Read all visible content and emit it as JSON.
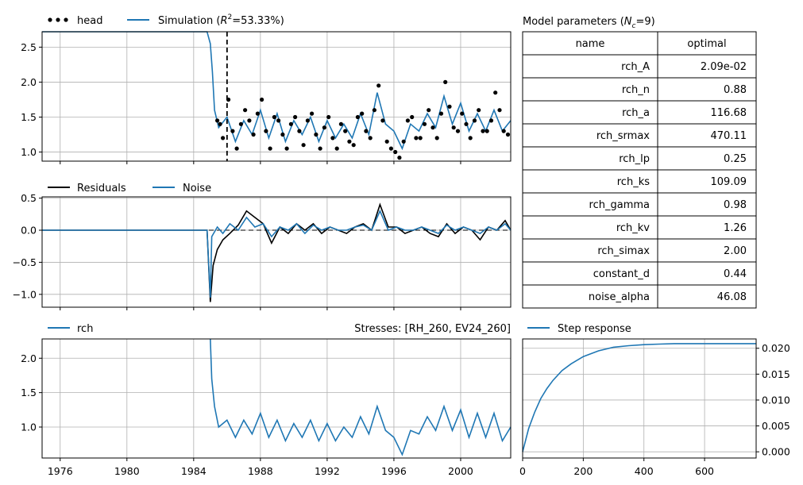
{
  "colors": {
    "simulation": "#1f77b4",
    "head": "#000000",
    "residuals": "#000000",
    "noise": "#1f77b4",
    "grid": "#b0b0b0"
  },
  "time_axis": {
    "xlim": [
      "1974-12-01",
      "2003-01-01"
    ],
    "ticks": [
      "1976",
      "1980",
      "1984",
      "1988",
      "1992",
      "1996",
      "2000"
    ]
  },
  "chart_data": [
    {
      "type": "line",
      "panel": "fit",
      "legend": {
        "head": "head",
        "simulation_prefix": "Simulation (",
        "simulation_r2_symbol": "R",
        "simulation_r2_sup": "2",
        "simulation_suffix": "=53.33%)"
      },
      "legend_placement": "top-left, outside",
      "ylim": [
        0.87,
        2.72
      ],
      "yticks": [
        "1.0",
        "1.5",
        "2.0",
        "2.5"
      ],
      "grid": true,
      "vline": {
        "x": "1986-01-01",
        "style": "dashed"
      },
      "series": [
        {
          "name": "Simulation",
          "kind": "line",
          "x": [
            "1974-12-01",
            "1984-10-20",
            "1985-01-01",
            "1985-02-15",
            "1985-04-01",
            "1985-07-01",
            "1986-01-01",
            "1986-07-01",
            "1987-01-01",
            "1987-07-01",
            "1988-01-01",
            "1988-07-01",
            "1989-01-01",
            "1989-07-01",
            "1990-01-01",
            "1990-07-01",
            "1991-01-01",
            "1991-07-01",
            "1992-01-01",
            "1992-07-01",
            "1993-01-01",
            "1993-07-01",
            "1994-01-01",
            "1994-07-01",
            "1995-01-01",
            "1995-07-01",
            "1996-01-01",
            "1996-07-01",
            "1997-01-01",
            "1997-07-01",
            "1998-01-01",
            "1998-07-01",
            "1999-01-01",
            "1999-07-01",
            "2000-01-01",
            "2000-07-01",
            "2001-01-01",
            "2001-07-01",
            "2002-01-01",
            "2002-07-01",
            "2003-01-01"
          ],
          "y": [
            2.72,
            2.72,
            2.55,
            2.15,
            1.6,
            1.35,
            1.5,
            1.15,
            1.45,
            1.25,
            1.6,
            1.2,
            1.55,
            1.15,
            1.45,
            1.25,
            1.5,
            1.15,
            1.45,
            1.2,
            1.4,
            1.2,
            1.55,
            1.25,
            1.85,
            1.4,
            1.3,
            1.05,
            1.4,
            1.3,
            1.55,
            1.35,
            1.8,
            1.4,
            1.7,
            1.3,
            1.55,
            1.3,
            1.6,
            1.3,
            1.45
          ]
        },
        {
          "name": "head",
          "kind": "points",
          "x": [
            "1985-06-01",
            "1985-08-01",
            "1985-10-01",
            "1986-02-01",
            "1986-05-01",
            "1986-08-01",
            "1986-11-01",
            "1987-02-01",
            "1987-05-01",
            "1987-08-01",
            "1987-11-01",
            "1988-02-01",
            "1988-05-01",
            "1988-08-01",
            "1988-11-01",
            "1989-02-01",
            "1989-05-01",
            "1989-08-01",
            "1989-11-01",
            "1990-02-01",
            "1990-05-01",
            "1990-08-01",
            "1990-11-01",
            "1991-02-01",
            "1991-05-01",
            "1991-08-01",
            "1991-11-01",
            "1992-02-01",
            "1992-05-01",
            "1992-08-01",
            "1992-11-01",
            "1993-02-01",
            "1993-05-01",
            "1993-08-01",
            "1993-11-01",
            "1994-02-01",
            "1994-05-01",
            "1994-08-01",
            "1994-11-01",
            "1995-02-01",
            "1995-05-01",
            "1995-08-01",
            "1995-11-01",
            "1996-02-01",
            "1996-05-01",
            "1996-08-01",
            "1996-11-01",
            "1997-02-01",
            "1997-05-01",
            "1997-08-01",
            "1997-11-01",
            "1998-02-01",
            "1998-05-01",
            "1998-08-01",
            "1998-11-01",
            "1999-02-01",
            "1999-05-01",
            "1999-08-01",
            "1999-11-01",
            "2000-02-01",
            "2000-05-01",
            "2000-08-01",
            "2000-11-01",
            "2001-02-01",
            "2001-05-01",
            "2001-08-01",
            "2001-11-01",
            "2002-02-01",
            "2002-05-01",
            "2002-08-01",
            "2002-11-01"
          ],
          "y": [
            1.45,
            1.4,
            1.2,
            1.75,
            1.3,
            1.05,
            1.4,
            1.6,
            1.45,
            1.25,
            1.55,
            1.75,
            1.3,
            1.05,
            1.5,
            1.45,
            1.25,
            1.05,
            1.4,
            1.5,
            1.3,
            1.1,
            1.45,
            1.55,
            1.25,
            1.05,
            1.35,
            1.5,
            1.2,
            1.05,
            1.4,
            1.3,
            1.15,
            1.1,
            1.5,
            1.55,
            1.3,
            1.2,
            1.6,
            1.95,
            1.45,
            1.15,
            1.05,
            1.0,
            0.92,
            1.15,
            1.45,
            1.5,
            1.2,
            1.2,
            1.4,
            1.6,
            1.35,
            1.2,
            1.55,
            2.0,
            1.65,
            1.35,
            1.3,
            1.55,
            1.4,
            1.2,
            1.45,
            1.6,
            1.3,
            1.3,
            1.45,
            1.85,
            1.6,
            1.3,
            1.25
          ]
        }
      ]
    },
    {
      "type": "line",
      "panel": "residuals",
      "legend": {
        "residuals": "Residuals",
        "noise": "Noise"
      },
      "legend_placement": "top-left, outside",
      "ylim": [
        -1.2,
        0.52
      ],
      "yticks": [
        "−1.0",
        "−0.5",
        "0.0",
        "0.5"
      ],
      "grid": true,
      "hline": {
        "y": 0.0,
        "style": "dashed"
      },
      "series": [
        {
          "name": "Residuals",
          "kind": "line",
          "x": [
            "1974-12-01",
            "1984-10-20",
            "1985-01-01",
            "1985-03-01",
            "1985-06-01",
            "1985-10-01",
            "1986-03-01",
            "1986-09-01",
            "1987-03-01",
            "1987-09-01",
            "1988-03-01",
            "1988-09-01",
            "1989-03-01",
            "1989-09-01",
            "1990-03-01",
            "1990-09-01",
            "1991-03-01",
            "1991-09-01",
            "1992-03-01",
            "1992-09-01",
            "1993-03-01",
            "1993-09-01",
            "1994-03-01",
            "1994-09-01",
            "1995-03-01",
            "1995-09-01",
            "1996-03-01",
            "1996-09-01",
            "1997-03-01",
            "1997-09-01",
            "1998-03-01",
            "1998-09-01",
            "1999-03-01",
            "1999-09-01",
            "2000-03-01",
            "2000-09-01",
            "2001-03-01",
            "2001-09-01",
            "2002-03-01",
            "2002-09-01",
            "2003-01-01"
          ],
          "y": [
            0.0,
            0.0,
            -1.12,
            -0.55,
            -0.3,
            -0.15,
            -0.05,
            0.08,
            0.3,
            0.2,
            0.1,
            -0.2,
            0.05,
            -0.05,
            0.1,
            0.0,
            0.1,
            -0.05,
            0.05,
            0.0,
            -0.05,
            0.05,
            0.1,
            0.0,
            0.4,
            0.05,
            0.05,
            -0.05,
            0.0,
            0.05,
            -0.05,
            -0.1,
            0.1,
            -0.05,
            0.05,
            0.0,
            -0.15,
            0.05,
            0.0,
            0.15,
            0.0
          ]
        },
        {
          "name": "Noise",
          "kind": "line",
          "x": [
            "1974-12-01",
            "1984-10-20",
            "1985-01-01",
            "1985-02-01",
            "1985-06-01",
            "1985-10-01",
            "1986-03-01",
            "1986-09-01",
            "1987-03-01",
            "1987-09-01",
            "1988-03-01",
            "1988-09-01",
            "1989-03-01",
            "1989-09-01",
            "1990-03-01",
            "1990-09-01",
            "1991-03-01",
            "1991-09-01",
            "1992-03-01",
            "1992-09-01",
            "1993-03-01",
            "1993-09-01",
            "1994-03-01",
            "1994-09-01",
            "1995-03-01",
            "1995-09-01",
            "1996-03-01",
            "1996-09-01",
            "1997-03-01",
            "1997-09-01",
            "1998-03-01",
            "1998-09-01",
            "1999-03-01",
            "1999-09-01",
            "2000-03-01",
            "2000-09-01",
            "2001-03-01",
            "2001-09-01",
            "2002-03-01",
            "2002-09-01",
            "2003-01-01"
          ],
          "y": [
            0.0,
            0.0,
            -1.05,
            -0.1,
            0.05,
            -0.05,
            0.1,
            0.0,
            0.2,
            0.05,
            0.1,
            -0.1,
            0.05,
            0.0,
            0.1,
            -0.05,
            0.08,
            0.0,
            0.05,
            0.0,
            0.0,
            0.05,
            0.08,
            0.0,
            0.3,
            0.0,
            0.05,
            0.0,
            0.0,
            0.05,
            0.0,
            -0.05,
            0.08,
            0.0,
            0.05,
            0.0,
            -0.05,
            0.05,
            0.0,
            0.1,
            0.0
          ]
        }
      ]
    },
    {
      "type": "line",
      "panel": "stresses",
      "legend": {
        "rch": "rch"
      },
      "stresses_label": "Stresses: [RH_260, EV24_260]",
      "ylim": [
        0.55,
        2.28
      ],
      "yticks": [
        "1.0",
        "1.5",
        "2.0"
      ],
      "grid": true,
      "series": [
        {
          "name": "rch",
          "kind": "line",
          "x": [
            "1985-01-01",
            "1985-02-01",
            "1985-04-01",
            "1985-07-01",
            "1986-01-01",
            "1986-07-01",
            "1987-01-01",
            "1987-07-01",
            "1988-01-01",
            "1988-07-01",
            "1989-01-01",
            "1989-07-01",
            "1990-01-01",
            "1990-07-01",
            "1991-01-01",
            "1991-07-01",
            "1992-01-01",
            "1992-07-01",
            "1993-01-01",
            "1993-07-01",
            "1994-01-01",
            "1994-07-01",
            "1995-01-01",
            "1995-07-01",
            "1996-01-01",
            "1996-07-01",
            "1997-01-01",
            "1997-07-01",
            "1998-01-01",
            "1998-07-01",
            "1999-01-01",
            "1999-07-01",
            "2000-01-01",
            "2000-07-01",
            "2001-01-01",
            "2001-07-01",
            "2002-01-01",
            "2002-07-01",
            "2003-01-01"
          ],
          "y": [
            2.28,
            1.7,
            1.3,
            1.0,
            1.1,
            0.85,
            1.1,
            0.9,
            1.2,
            0.85,
            1.1,
            0.8,
            1.05,
            0.85,
            1.1,
            0.8,
            1.05,
            0.8,
            1.0,
            0.85,
            1.15,
            0.9,
            1.3,
            0.95,
            0.85,
            0.6,
            0.95,
            0.9,
            1.15,
            0.95,
            1.3,
            0.95,
            1.25,
            0.85,
            1.2,
            0.85,
            1.2,
            0.8,
            1.0
          ]
        }
      ]
    },
    {
      "type": "line",
      "panel": "step_response",
      "legend": {
        "step": "Step response"
      },
      "xlim": [
        0,
        770
      ],
      "ylim": [
        -0.0012,
        0.0218
      ],
      "xticks": [
        "0",
        "200",
        "400",
        "600"
      ],
      "yticks": [
        "0.000",
        "0.005",
        "0.010",
        "0.015",
        "0.020"
      ],
      "y_axis_side": "right",
      "grid": true,
      "series": [
        {
          "name": "Step response",
          "x": [
            0,
            20,
            40,
            60,
            80,
            100,
            130,
            160,
            200,
            250,
            300,
            350,
            400,
            450,
            500,
            550,
            600,
            650,
            700,
            770
          ],
          "y": [
            0.0,
            0.0045,
            0.0077,
            0.0103,
            0.0122,
            0.0138,
            0.0157,
            0.017,
            0.0184,
            0.0195,
            0.0202,
            0.0205,
            0.0207,
            0.0208,
            0.0209,
            0.0209,
            0.0209,
            0.0209,
            0.0209,
            0.0209
          ]
        }
      ]
    },
    {
      "type": "table",
      "title_prefix": "Model parameters (",
      "title_symbol": "N",
      "title_sub": "c",
      "title_suffix": "=9)",
      "columns": [
        "name",
        "optimal"
      ],
      "rows": [
        [
          "rch_A",
          "2.09e-02"
        ],
        [
          "rch_n",
          "0.88"
        ],
        [
          "rch_a",
          "116.68"
        ],
        [
          "rch_srmax",
          "470.11"
        ],
        [
          "rch_lp",
          "0.25"
        ],
        [
          "rch_ks",
          "109.09"
        ],
        [
          "rch_gamma",
          "0.98"
        ],
        [
          "rch_kv",
          "1.26"
        ],
        [
          "rch_simax",
          "2.00"
        ],
        [
          "constant_d",
          "0.44"
        ],
        [
          "noise_alpha",
          "46.08"
        ]
      ]
    }
  ]
}
